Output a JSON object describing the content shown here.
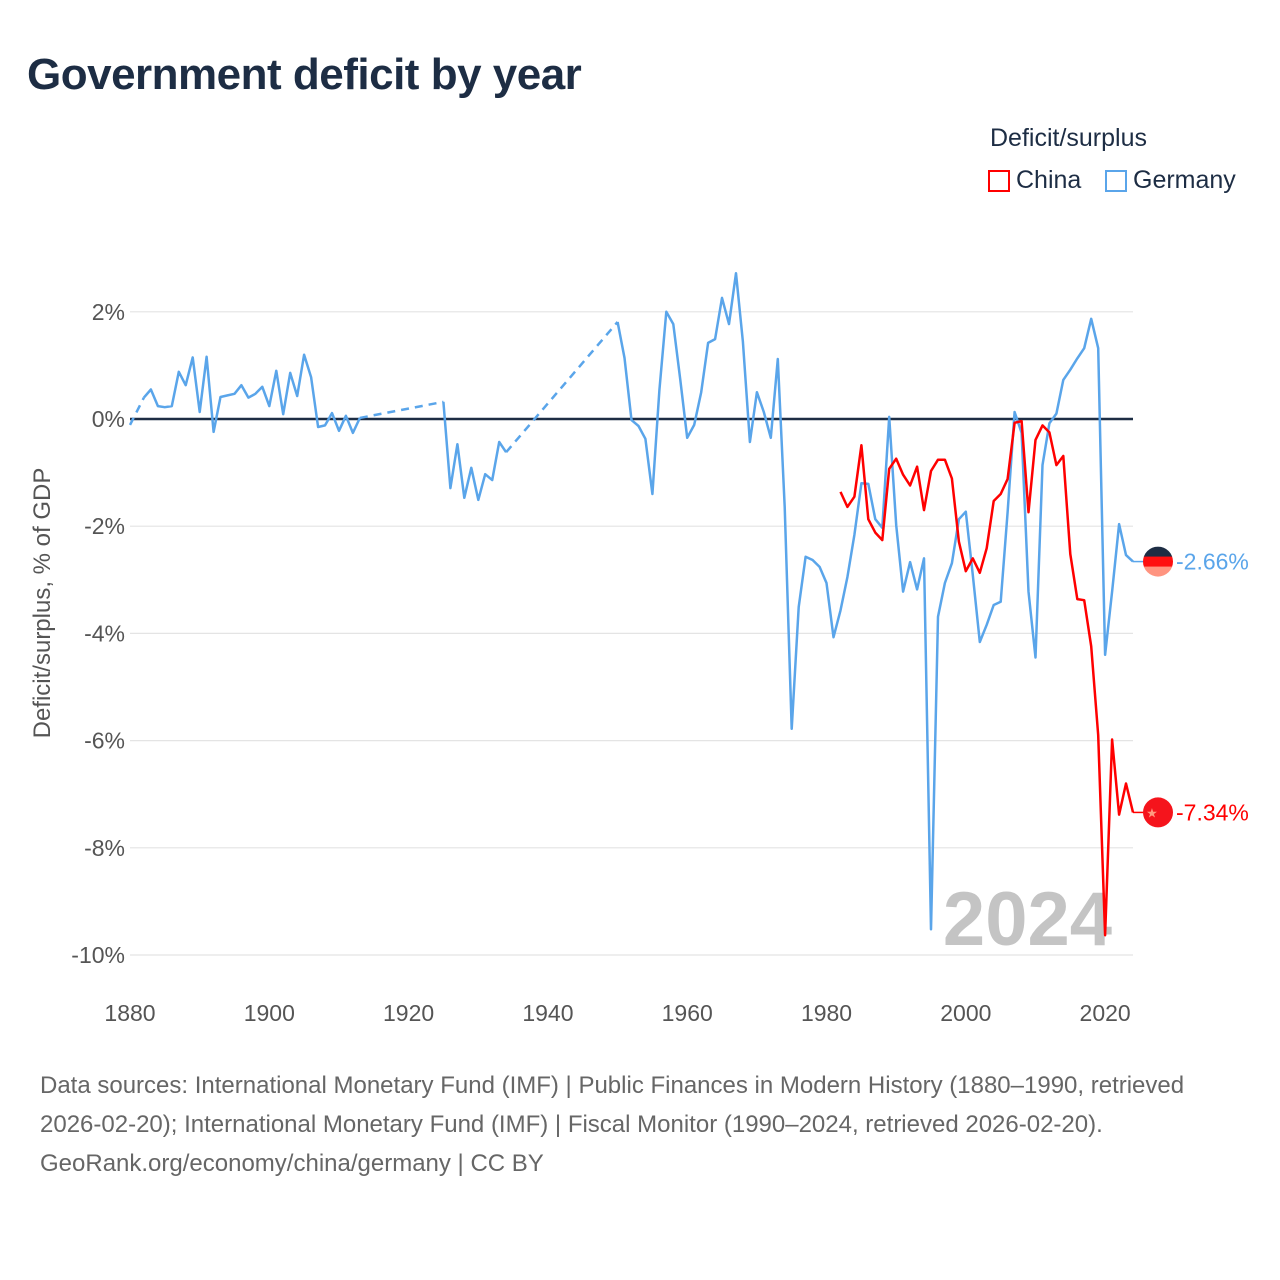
{
  "title": "Government deficit by year",
  "legend": {
    "title": "Deficit/surplus",
    "items": [
      {
        "name": "China",
        "color": "#ff0000"
      },
      {
        "name": "Germany",
        "color": "#5aa5ea"
      }
    ]
  },
  "footer": {
    "sources": "Data sources: International Monetary Fund (IMF) | Public Finances in Modern History (1880–1990, retrieved 2026-02-20); International Monetary Fund (IMF) | Fiscal Monitor (1990–2024, retrieved 2026-02-20).",
    "credit": "GeoRank.org/economy/china/germany | CC BY"
  },
  "chart_data": {
    "type": "line",
    "title": "Government deficit by year",
    "xlabel": "",
    "ylabel": "Deficit/surplus, % of GDP",
    "xlim": [
      1880,
      2024
    ],
    "ylim": [
      -10,
      2.8
    ],
    "xticks": [
      1880,
      1900,
      1920,
      1940,
      1960,
      1980,
      2000,
      2020
    ],
    "xtick_labels": [
      "1880",
      "1900",
      "1920",
      "1940",
      "1960",
      "1980",
      "2000",
      "2020"
    ],
    "yticks": [
      2,
      0,
      -2,
      -4,
      -6,
      -8,
      -10
    ],
    "ytick_labels": [
      "2%",
      "0%",
      "-2%",
      "-4%",
      "-6%",
      "-8%",
      "-10%"
    ],
    "grid": true,
    "year_label": "2024",
    "legend_position": "top-right",
    "series": [
      {
        "name": "Germany",
        "color": "#5aa5ea",
        "end_label": "-2.66%",
        "x": [
          1880,
          1882,
          1883,
          1884,
          1885,
          1886,
          1887,
          1888,
          1889,
          1890,
          1891,
          1892,
          1893,
          1894,
          1895,
          1896,
          1897,
          1898,
          1899,
          1900,
          1901,
          1902,
          1903,
          1904,
          1905,
          1906,
          1907,
          1908,
          1909,
          1910,
          1911,
          1912,
          1913,
          1925,
          1926,
          1927,
          1928,
          1929,
          1930,
          1931,
          1932,
          1933,
          1934,
          1950,
          1951,
          1952,
          1953,
          1954,
          1955,
          1956,
          1957,
          1958,
          1959,
          1960,
          1961,
          1962,
          1963,
          1964,
          1965,
          1966,
          1967,
          1968,
          1969,
          1970,
          1971,
          1972,
          1973,
          1974,
          1975,
          1976,
          1977,
          1978,
          1979,
          1980,
          1981,
          1982,
          1983,
          1984,
          1985,
          1986,
          1987,
          1988,
          1989,
          1990,
          1991,
          1992,
          1993,
          1994,
          1995,
          1996,
          1997,
          1998,
          1999,
          2000,
          2001,
          2002,
          2003,
          2004,
          2005,
          2006,
          2007,
          2008,
          2009,
          2010,
          2011,
          2012,
          2013,
          2014,
          2015,
          2016,
          2017,
          2018,
          2019,
          2020,
          2021,
          2022,
          2023,
          2024
        ],
        "y": [
          -0.11,
          0.4,
          0.55,
          0.24,
          0.22,
          0.24,
          0.88,
          0.63,
          1.15,
          0.13,
          1.16,
          -0.24,
          0.41,
          0.44,
          0.47,
          0.63,
          0.4,
          0.47,
          0.6,
          0.24,
          0.9,
          0.09,
          0.86,
          0.43,
          1.2,
          0.78,
          -0.15,
          -0.12,
          0.11,
          -0.22,
          0.06,
          -0.26,
          0.02,
          0.32,
          -1.29,
          -0.47,
          -1.47,
          -0.91,
          -1.51,
          -1.03,
          -1.14,
          -0.43,
          -0.62,
          1.81,
          1.14,
          -0.02,
          -0.13,
          -0.37,
          -1.4,
          0.54,
          2.0,
          1.77,
          0.73,
          -0.35,
          -0.11,
          0.5,
          1.42,
          1.49,
          2.26,
          1.77,
          2.72,
          1.44,
          -0.43,
          0.5,
          0.13,
          -0.35,
          1.12,
          -1.64,
          -5.78,
          -3.51,
          -2.57,
          -2.63,
          -2.76,
          -3.06,
          -4.07,
          -3.57,
          -2.95,
          -2.16,
          -1.2,
          -1.21,
          -1.87,
          -2.03,
          0.04,
          -1.98,
          -3.22,
          -2.67,
          -3.18,
          -2.6,
          -9.52,
          -3.69,
          -3.06,
          -2.69,
          -1.87,
          -1.73,
          -2.91,
          -4.16,
          -3.84,
          -3.47,
          -3.41,
          -1.74,
          0.13,
          -0.26,
          -3.22,
          -4.45,
          -0.86,
          -0.08,
          0.1,
          0.73,
          0.92,
          1.13,
          1.32,
          1.87,
          1.32,
          -4.4,
          -3.22,
          -1.96,
          -2.54,
          -2.66
        ]
      },
      {
        "name": "China",
        "color": "#ff0000",
        "end_label": "-7.34%",
        "x": [
          1982,
          1983,
          1984,
          1985,
          1986,
          1987,
          1988,
          1989,
          1990,
          1991,
          1992,
          1993,
          1994,
          1995,
          1996,
          1997,
          1998,
          1999,
          2000,
          2001,
          2002,
          2003,
          2004,
          2005,
          2006,
          2007,
          2008,
          2009,
          2010,
          2011,
          2012,
          2013,
          2014,
          2015,
          2016,
          2017,
          2018,
          2019,
          2020,
          2021,
          2022,
          2023,
          2024
        ],
        "y": [
          -1.36,
          -1.64,
          -1.45,
          -0.49,
          -1.87,
          -2.12,
          -2.26,
          -0.93,
          -0.74,
          -1.04,
          -1.24,
          -0.89,
          -1.7,
          -0.97,
          -0.76,
          -0.76,
          -1.11,
          -2.29,
          -2.84,
          -2.6,
          -2.87,
          -2.41,
          -1.53,
          -1.4,
          -1.12,
          -0.07,
          -0.04,
          -1.74,
          -0.39,
          -0.12,
          -0.25,
          -0.86,
          -0.69,
          -2.52,
          -3.36,
          -3.38,
          -4.24,
          -5.9,
          -9.63,
          -5.98,
          -7.38,
          -6.8,
          -7.34
        ]
      }
    ]
  }
}
